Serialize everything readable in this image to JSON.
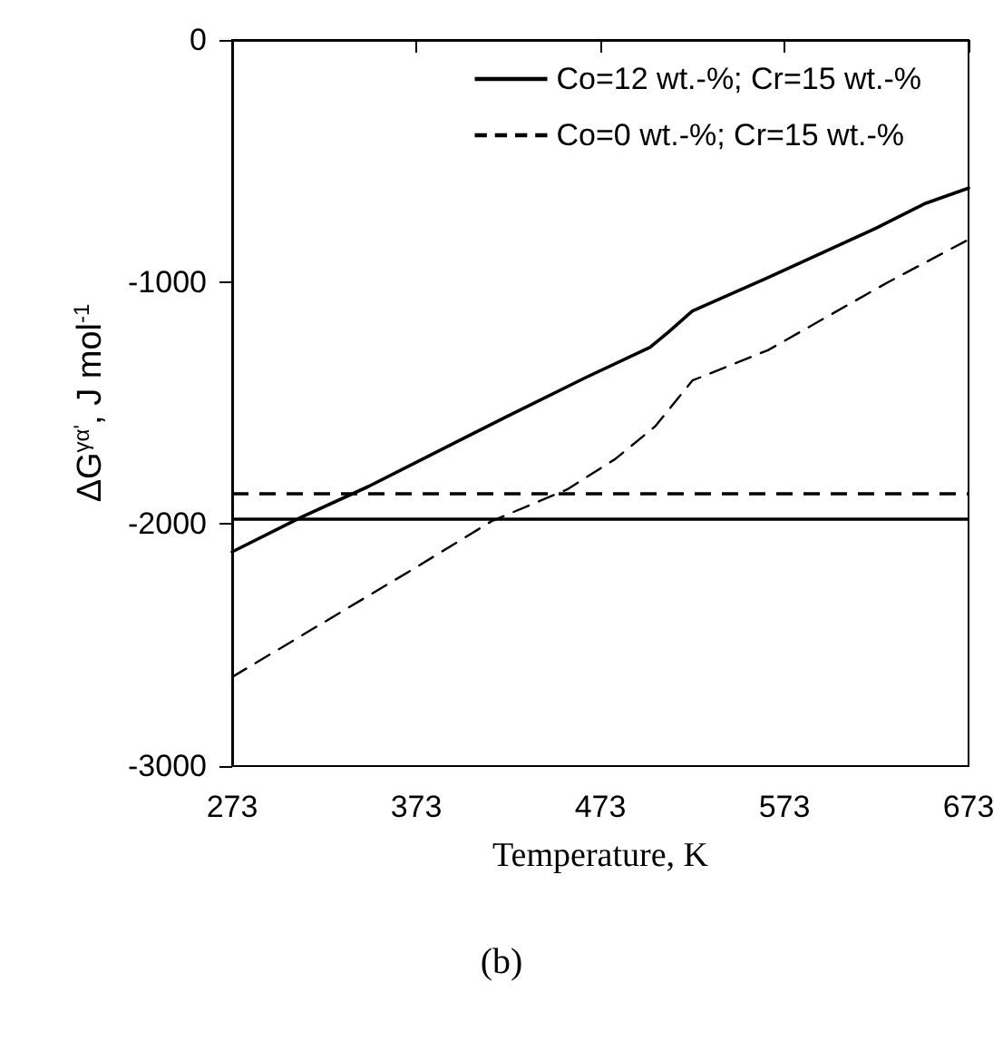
{
  "chart_data": {
    "type": "line",
    "xlabel": "Temperature, K",
    "ylabel": "ΔG$^{γα'}$, J mol$^{-1}$",
    "xlim": [
      273,
      673
    ],
    "xticks": [
      273,
      373,
      473,
      573,
      673
    ],
    "ylim": [
      -3000,
      0
    ],
    "yticks": [
      -3000,
      -2000,
      -1000,
      0
    ],
    "grid": false,
    "legend": "top right",
    "marker": "none",
    "series": [
      {
        "name": "Co=12 wt.-%; Cr=15 wt.-%",
        "color": "#000000",
        "line_style": "solid",
        "x": [
          273,
          311,
          347,
          399,
          422,
          465,
          500,
          510,
          523,
          564,
          623,
          649,
          673
        ],
        "values": [
          -2115,
          -1970,
          -1845,
          -1645,
          -1557,
          -1395,
          -1270,
          -1207,
          -1120,
          -982,
          -777,
          -677,
          -612
        ]
      },
      {
        "name": "Co=0 wt.-%; Cr=15 wt.-%",
        "color": "#000000",
        "line_style": "dashed",
        "x": [
          273,
          372,
          414,
          455,
          481,
          503,
          523,
          564,
          629,
          673
        ],
        "values": [
          -2632,
          -2183,
          -1988,
          -1857,
          -1732,
          -1595,
          -1407,
          -1282,
          -1002,
          -825
        ]
      }
    ],
    "ref_lines": [
      {
        "axis": "y",
        "value": -1975,
        "label": null,
        "color": "#000000",
        "line_style": "solid"
      },
      {
        "axis": "y",
        "value": -1870,
        "label": null,
        "color": "#000000",
        "line_style": "dashed"
      }
    ],
    "annotations": [
      "(b)"
    ]
  }
}
